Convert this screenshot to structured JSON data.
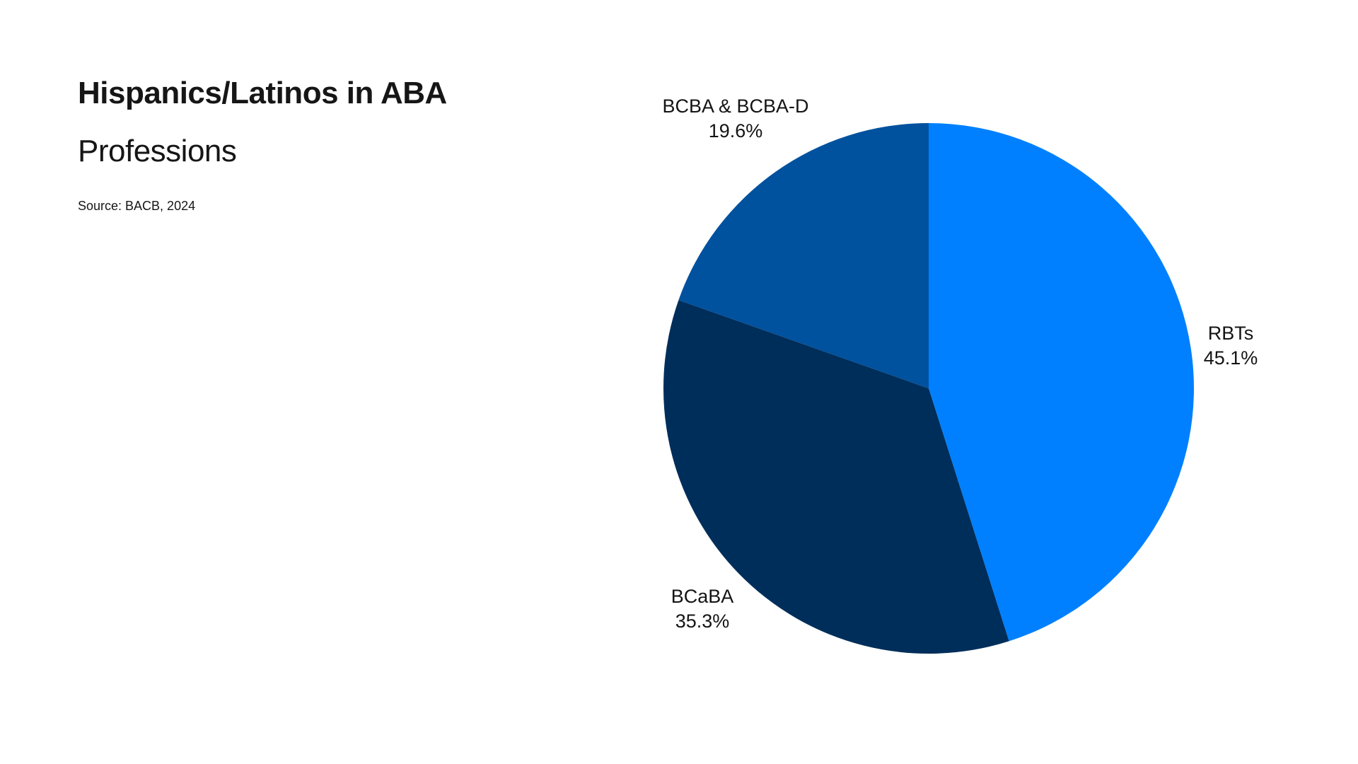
{
  "page": {
    "background": "#ffffff",
    "text_color": "#161616"
  },
  "header": {
    "title_line1": "Hispanics/Latinos in ABA",
    "title_line2": "Professions",
    "source": "Source: BACB, 2024"
  },
  "chart_data": {
    "type": "pie",
    "title": "Hispanics/Latinos in ABA Professions",
    "source": "Source: BACB, 2024",
    "start_angle_deg": 0,
    "direction": "clockwise",
    "legend_position": "none",
    "labels_position": "outside",
    "slices": [
      {
        "label": "RBTs",
        "value": 45.1,
        "display": "45.1%",
        "color": "#0080FF"
      },
      {
        "label": "BCaBA",
        "value": 35.3,
        "display": "35.3%",
        "color": "#002E5A"
      },
      {
        "label": "BCBA & BCBA-D",
        "value": 19.6,
        "display": "19.6%",
        "color": "#00519E"
      }
    ]
  }
}
